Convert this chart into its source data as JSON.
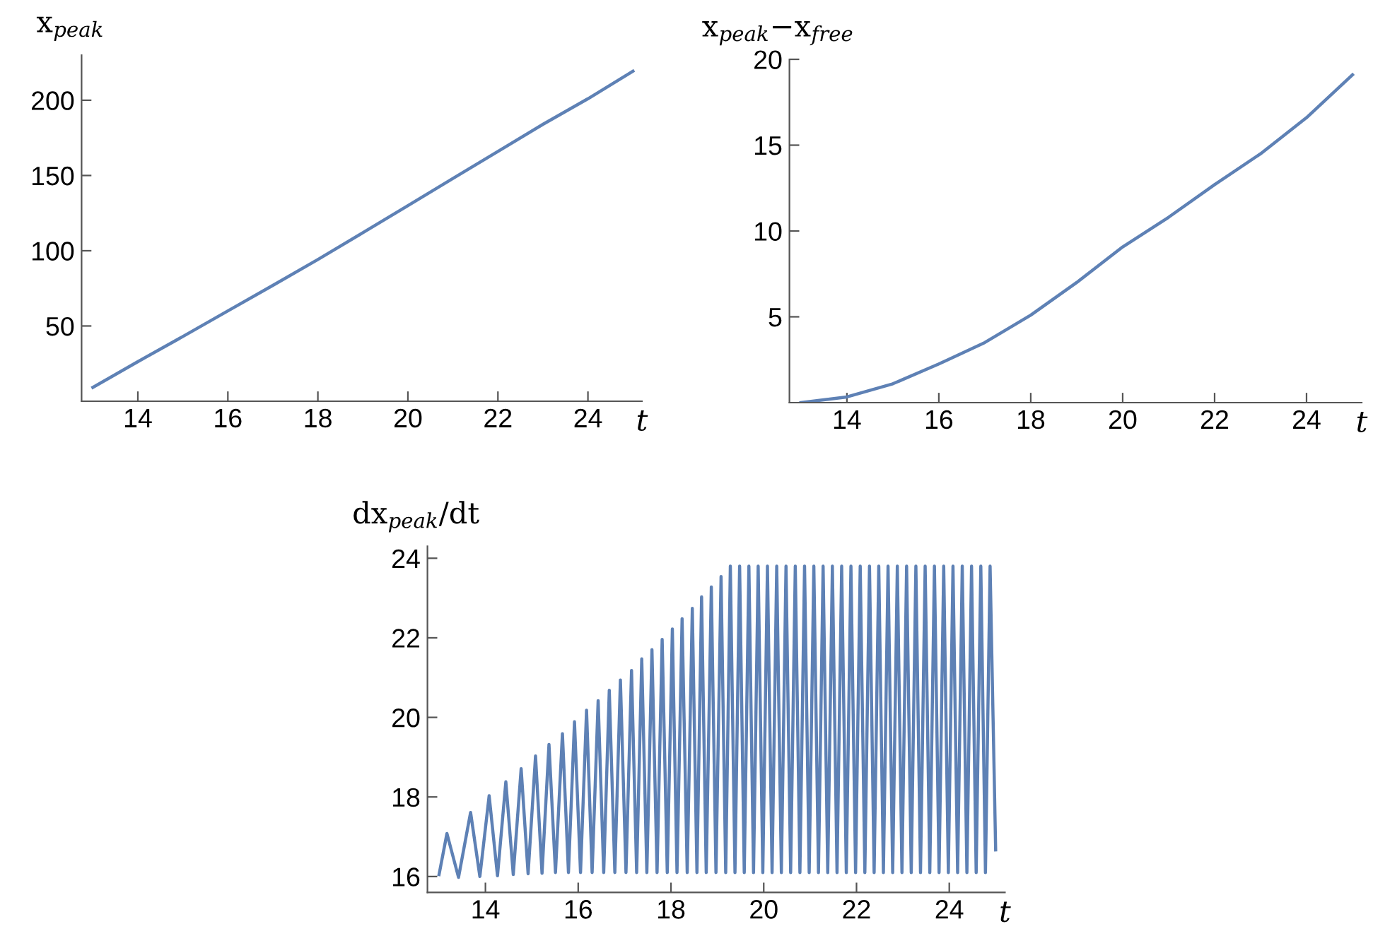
{
  "chart_data": [
    {
      "type": "line",
      "ylabel": "x$_{peak}$",
      "xlabel": "t",
      "color": "#5e81b5",
      "grid": false,
      "xlim": [
        12.75,
        25.2
      ],
      "ylim": [
        0,
        230
      ],
      "xticks": [
        14,
        16,
        18,
        20,
        22,
        24
      ],
      "yticks": [
        50,
        100,
        150,
        200
      ],
      "x": [
        13,
        14,
        15,
        16,
        17,
        18,
        19,
        20,
        21,
        22,
        23,
        24,
        25
      ],
      "values": [
        9.2,
        26.3,
        43,
        60,
        77,
        94.2,
        112,
        130,
        148,
        166,
        184,
        201,
        219.3
      ]
    },
    {
      "type": "line",
      "ylabel": "x$_{peak}$−x$_{free}$",
      "xlabel": "t",
      "color": "#5e81b5",
      "grid": false,
      "xlim": [
        12.75,
        25.2
      ],
      "ylim": [
        0,
        20
      ],
      "xticks": [
        14,
        16,
        18,
        20,
        22,
        24
      ],
      "yticks": [
        5,
        10,
        15,
        20
      ],
      "x": [
        13,
        14,
        15,
        16,
        17,
        18,
        19,
        20,
        21,
        22,
        23,
        24,
        25
      ],
      "values": [
        0,
        0.33,
        1.1,
        2.25,
        3.5,
        5.1,
        7.0,
        9.07,
        10.8,
        12.7,
        14.5,
        16.6,
        19.1
      ]
    },
    {
      "type": "line",
      "ylabel": "dx$_{peak}$/dt",
      "xlabel": "t",
      "color": "#5e81b5",
      "grid": false,
      "xlim": [
        12.75,
        25.2
      ],
      "ylim": [
        15.6,
        24.3
      ],
      "xticks": [
        14,
        16,
        18,
        20,
        22,
        24
      ],
      "yticks": [
        16,
        18,
        20,
        22,
        24
      ],
      "x": [
        13.0,
        13.17,
        13.42,
        13.68,
        13.88,
        14.08,
        14.26,
        14.44,
        14.6,
        14.77,
        14.92,
        15.08,
        15.22,
        15.37,
        15.51,
        15.66,
        15.79,
        15.92,
        16.05,
        16.18,
        16.3,
        16.43,
        16.55,
        16.67,
        16.79,
        16.91,
        17.03,
        17.15,
        17.26,
        17.37,
        17.48,
        17.59,
        17.7,
        17.81,
        17.92,
        18.03,
        18.13,
        18.24,
        18.35,
        18.46,
        18.56,
        18.66,
        18.76,
        18.87,
        18.97,
        19.08,
        19.18,
        19.28,
        19.38,
        19.48,
        19.58,
        19.68,
        19.78,
        19.88,
        19.98,
        20.08,
        20.18,
        20.28,
        20.38,
        20.48,
        20.58,
        20.68,
        20.78,
        20.88,
        20.98,
        21.08,
        21.18,
        21.28,
        21.38,
        21.48,
        21.58,
        21.68,
        21.78,
        21.88,
        21.98,
        22.08,
        22.18,
        22.28,
        22.38,
        22.48,
        22.58,
        22.68,
        22.78,
        22.88,
        22.98,
        23.08,
        23.18,
        23.28,
        23.38,
        23.48,
        23.58,
        23.68,
        23.78,
        23.88,
        23.98,
        24.08,
        24.18,
        24.28,
        24.38,
        24.48,
        24.58,
        24.68,
        24.78,
        24.88,
        25.0
      ],
      "values": [
        16.05,
        17.08,
        15.98,
        17.61,
        16.0,
        18.03,
        16.02,
        18.38,
        16.05,
        18.71,
        16.07,
        19.03,
        16.08,
        19.32,
        16.1,
        19.59,
        16.1,
        19.89,
        16.1,
        20.18,
        16.1,
        20.42,
        16.1,
        20.68,
        16.1,
        20.94,
        16.1,
        21.18,
        16.1,
        21.47,
        16.1,
        21.7,
        16.1,
        21.96,
        16.1,
        22.22,
        16.1,
        22.48,
        16.1,
        22.74,
        16.1,
        23.03,
        16.1,
        23.28,
        16.1,
        23.54,
        16.1,
        23.8,
        16.1,
        23.8,
        16.1,
        23.8,
        16.1,
        23.8,
        16.1,
        23.8,
        16.1,
        23.8,
        16.1,
        23.8,
        16.1,
        23.8,
        16.1,
        23.8,
        16.1,
        23.8,
        16.1,
        23.8,
        16.1,
        23.8,
        16.1,
        23.8,
        16.1,
        23.8,
        16.1,
        23.8,
        16.1,
        23.8,
        16.1,
        23.8,
        16.1,
        23.8,
        16.1,
        23.8,
        16.1,
        23.8,
        16.1,
        23.8,
        16.1,
        23.8,
        16.1,
        23.8,
        16.1,
        23.8,
        16.1,
        23.8,
        16.1,
        23.8,
        16.1,
        23.8,
        16.1,
        23.8,
        16.1,
        23.8,
        16.67
      ]
    }
  ]
}
